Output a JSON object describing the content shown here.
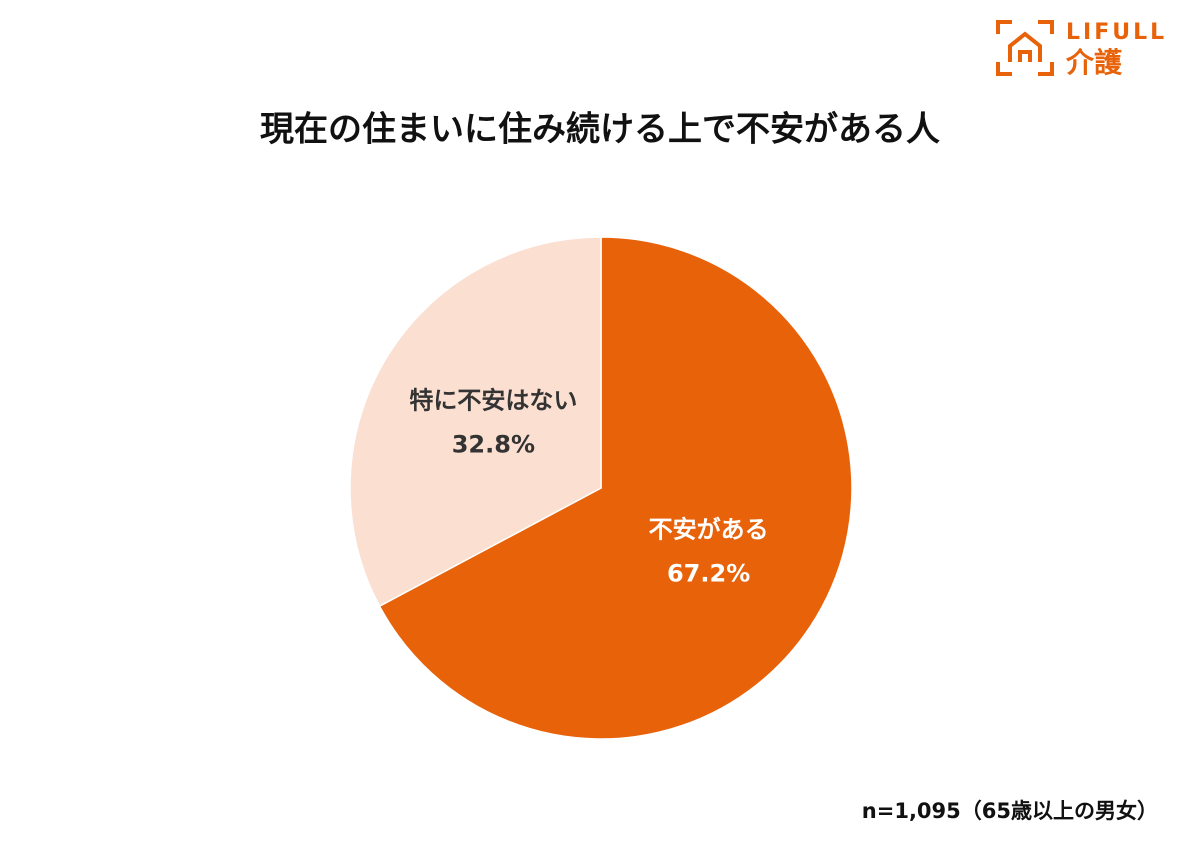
{
  "logo": {
    "name": "LIFULL",
    "service": "介護"
  },
  "chart_data": {
    "type": "pie",
    "title": "現在の住まいに住み続ける上で不安がある人",
    "categories": [
      "不安がある",
      "特に不安はない"
    ],
    "values": [
      67.2,
      32.8
    ],
    "value_labels": [
      "67.2%",
      "32.8%"
    ],
    "colors": [
      "#e8620a",
      "#fbdfd0"
    ],
    "label_colors": [
      "#ffffff",
      "#333333"
    ],
    "note": "n=1,095（65歳以上の男女）"
  }
}
